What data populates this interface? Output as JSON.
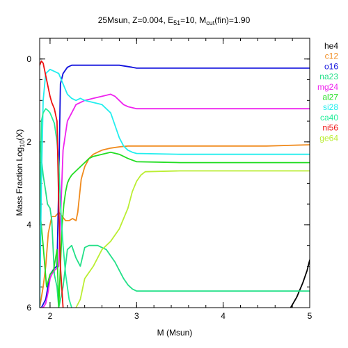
{
  "chart_data": {
    "type": "line",
    "title": {
      "prefix": "25Msun, Z=0.004, E",
      "sub1": "51",
      "middle": "=10, M",
      "sub2": "cut",
      "suffix": "(fin)=1.90"
    },
    "xlabel": "M (Msun)",
    "ylabel": {
      "prefix": "Mass Fraction Log",
      "sub": "10",
      "suffix": "(X)"
    },
    "xlim": [
      1.88,
      5.0
    ],
    "ylim": [
      -6,
      0.5
    ],
    "xticks": [
      2,
      3,
      4,
      5
    ],
    "xtick_labels": [
      "2",
      "3",
      "4",
      "5"
    ],
    "yticks": [
      0,
      -2,
      -4,
      -6
    ],
    "ytick_labels": [
      "0",
      "2",
      "4",
      "6"
    ],
    "grid": false,
    "legend_position": "right",
    "series": [
      {
        "name": "he4",
        "color": "#000000",
        "x": [
          4.78,
          4.85,
          4.92,
          4.97,
          5.0
        ],
        "y": [
          -6.0,
          -5.75,
          -5.4,
          -5.1,
          -4.85
        ]
      },
      {
        "name": "c12",
        "color": "#f08a1c",
        "x": [
          1.88,
          1.92,
          1.95,
          1.98,
          2.02,
          2.06,
          2.1,
          2.14,
          2.18,
          2.22,
          2.26,
          2.3,
          2.32,
          2.34,
          2.36,
          2.4,
          2.45,
          2.5,
          2.55,
          2.6,
          2.7,
          2.8,
          2.9,
          3.0,
          3.5,
          4.0,
          4.5,
          5.0
        ],
        "y": [
          -6.0,
          -5.5,
          -5.0,
          -4.2,
          -3.8,
          -3.8,
          -3.7,
          -3.8,
          -3.9,
          -3.9,
          -3.85,
          -3.9,
          -3.7,
          -3.3,
          -2.9,
          -2.6,
          -2.4,
          -2.3,
          -2.25,
          -2.2,
          -2.15,
          -2.12,
          -2.1,
          -2.1,
          -2.1,
          -2.1,
          -2.1,
          -2.07
        ]
      },
      {
        "name": "o16",
        "color": "#1010dd",
        "x": [
          1.88,
          1.9,
          1.95,
          2.0,
          2.05,
          2.08,
          2.1,
          2.12,
          2.15,
          2.2,
          2.25,
          2.3,
          2.4,
          2.6,
          2.8,
          2.95,
          3.0,
          3.5,
          4.0,
          4.5,
          5.0
        ],
        "y": [
          -6.0,
          -6.0,
          -5.8,
          -5.2,
          -5.05,
          -5.0,
          -3.0,
          -0.6,
          -0.35,
          -0.2,
          -0.15,
          -0.15,
          -0.15,
          -0.15,
          -0.15,
          -0.2,
          -0.22,
          -0.22,
          -0.22,
          -0.22,
          -0.22
        ]
      },
      {
        "name": "na23",
        "color": "#22e088",
        "x": [
          1.88,
          1.92,
          1.95,
          1.97,
          2.0,
          2.02,
          2.05,
          2.08,
          2.1,
          2.15,
          2.2,
          2.25,
          2.3,
          2.35,
          2.4,
          2.45,
          2.5,
          2.55,
          2.6,
          2.65,
          2.7,
          2.75,
          2.8,
          2.85,
          2.9,
          2.95,
          3.0,
          3.5,
          4.0,
          4.5,
          5.0
        ],
        "y": [
          -2.0,
          -2.8,
          -3.2,
          -3.5,
          -3.6,
          -3.9,
          -5.2,
          -5.5,
          -6.0,
          -5.5,
          -4.6,
          -4.5,
          -4.8,
          -5.0,
          -4.55,
          -4.5,
          -4.5,
          -4.5,
          -4.55,
          -4.6,
          -4.75,
          -4.9,
          -5.1,
          -5.3,
          -5.45,
          -5.55,
          -5.6,
          -5.6,
          -5.6,
          -5.6,
          -5.6
        ]
      },
      {
        "name": "mg24",
        "color": "#ee22ee",
        "x": [
          1.88,
          1.92,
          1.95,
          1.98,
          2.0,
          2.02,
          2.05,
          2.08,
          2.1,
          2.15,
          2.2,
          2.25,
          2.3,
          2.35,
          2.4,
          2.5,
          2.6,
          2.7,
          2.75,
          2.8,
          2.85,
          2.9,
          3.0,
          3.5,
          4.0,
          4.5,
          5.0
        ],
        "y": [
          -6.0,
          -6.0,
          -5.9,
          -5.6,
          -5.3,
          -5.2,
          -5.1,
          -5.05,
          -5.0,
          -2.2,
          -1.5,
          -1.3,
          -1.1,
          -1.05,
          -1.0,
          -0.95,
          -0.9,
          -0.85,
          -0.9,
          -1.0,
          -1.1,
          -1.15,
          -1.2,
          -1.2,
          -1.2,
          -1.2,
          -1.2
        ]
      },
      {
        "name": "al27",
        "color": "#22dd22",
        "x": [
          1.88,
          1.92,
          1.96,
          2.0,
          2.04,
          2.08,
          2.1,
          2.12,
          2.14,
          2.16,
          2.18,
          2.2,
          2.22,
          2.25,
          2.3,
          2.35,
          2.4,
          2.45,
          2.5,
          2.6,
          2.7,
          2.8,
          2.9,
          3.0,
          3.5,
          4.0,
          4.5,
          5.0
        ],
        "y": [
          -3.6,
          -4.5,
          -5.5,
          -5.2,
          -5.1,
          -4.6,
          -6.0,
          -5.0,
          -4.0,
          -3.5,
          -3.2,
          -3.0,
          -2.9,
          -2.8,
          -2.7,
          -2.6,
          -2.5,
          -2.4,
          -2.35,
          -2.3,
          -2.25,
          -2.3,
          -2.4,
          -2.48,
          -2.5,
          -2.5,
          -2.5,
          -2.5
        ]
      },
      {
        "name": "si28",
        "color": "#22eeee",
        "x": [
          1.88,
          1.9,
          1.92,
          1.95,
          2.0,
          2.05,
          2.1,
          2.15,
          2.2,
          2.25,
          2.3,
          2.35,
          2.4,
          2.5,
          2.6,
          2.7,
          2.75,
          2.8,
          2.85,
          2.9,
          2.95,
          3.0,
          3.5,
          4.0,
          4.5,
          5.0
        ],
        "y": [
          -6.0,
          -3.0,
          -1.0,
          -0.35,
          -0.25,
          -0.3,
          -0.35,
          -0.6,
          -0.85,
          -0.95,
          -1.0,
          -0.95,
          -1.0,
          -1.05,
          -1.1,
          -1.3,
          -1.6,
          -1.9,
          -2.1,
          -2.2,
          -2.25,
          -2.28,
          -2.3,
          -2.3,
          -2.3,
          -2.3
        ]
      },
      {
        "name": "ca40",
        "color": "#22ee99",
        "x": [
          1.88,
          1.9,
          1.92,
          1.95,
          1.98,
          2.0,
          2.02,
          2.05,
          2.08,
          2.1,
          2.12,
          2.15,
          2.18,
          2.2,
          2.22,
          2.25
        ],
        "y": [
          -4.0,
          -1.5,
          -1.3,
          -1.2,
          -1.25,
          -1.3,
          -1.4,
          -1.55,
          -2.0,
          -2.5,
          -3.5,
          -4.5,
          -5.2,
          -5.5,
          -5.8,
          -6.0
        ]
      },
      {
        "name": "ni56",
        "color": "#ee1111",
        "x": [
          1.88,
          1.9,
          1.92,
          1.95,
          1.98,
          2.0,
          2.02,
          2.05,
          2.08,
          2.1,
          2.12,
          2.15
        ],
        "y": [
          -0.15,
          -0.05,
          -0.1,
          -0.4,
          -0.7,
          -0.9,
          -1.05,
          -1.2,
          -1.5,
          -3.5,
          -5.0,
          -6.0
        ]
      },
      {
        "name": "ge64",
        "color": "#bbee33",
        "x": [
          2.3,
          2.35,
          2.4,
          2.5,
          2.6,
          2.7,
          2.8,
          2.9,
          2.95,
          3.0,
          3.05,
          3.1,
          3.5,
          4.0,
          4.5,
          5.0
        ],
        "y": [
          -6.0,
          -5.8,
          -5.3,
          -5.0,
          -4.6,
          -4.4,
          -4.1,
          -3.6,
          -3.2,
          -2.95,
          -2.8,
          -2.72,
          -2.7,
          -2.7,
          -2.7,
          -2.7
        ]
      }
    ]
  }
}
